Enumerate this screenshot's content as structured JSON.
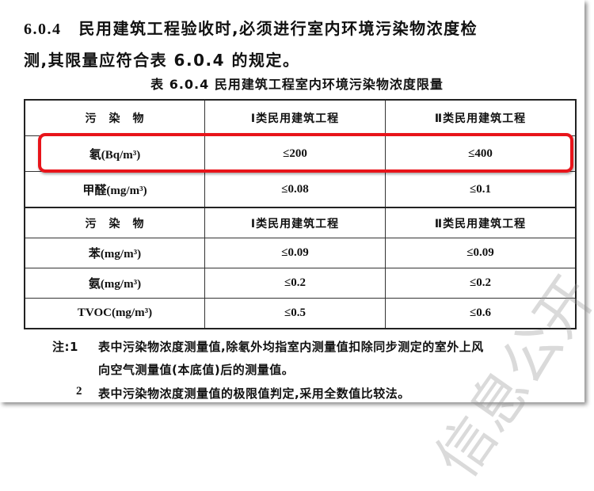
{
  "clause": {
    "number": "6.0.4",
    "line1": "民用建筑工程验收时,必须进行室内环境污染物浓度检",
    "line2": "测,其限量应符合表 6.0.4 的规定。"
  },
  "table": {
    "caption": "表 6.0.4   民用建筑工程室内环境污染物浓度限量",
    "headers": [
      "污　染　物",
      "Ⅰ类民用建筑工程",
      "Ⅱ类民用建筑工程"
    ],
    "rows_a": [
      [
        "氡(Bq/m³)",
        "≤200",
        "≤400"
      ],
      [
        "甲醛(mg/m³)",
        "≤0.08",
        "≤0.1"
      ]
    ],
    "rows_b": [
      [
        "苯(mg/m³)",
        "≤0.09",
        "≤0.09"
      ],
      [
        "氨(mg/m³)",
        "≤0.2",
        "≤0.2"
      ],
      [
        "TVOC(mg/m³)",
        "≤0.5",
        "≤0.6"
      ]
    ],
    "highlight_color": "#e8141a"
  },
  "notes": {
    "label": "注:1",
    "note1_line1": "表中污染物浓度测量值,除氡外均指室内测量值扣除同步测定的室外上风",
    "note1_line2": "向空气测量值(本底值)后的测量值。",
    "note2_num": "2",
    "note2": "表中污染物浓度测量值的极限值判定,采用全数值比较法。"
  },
  "watermark": "信息公开"
}
